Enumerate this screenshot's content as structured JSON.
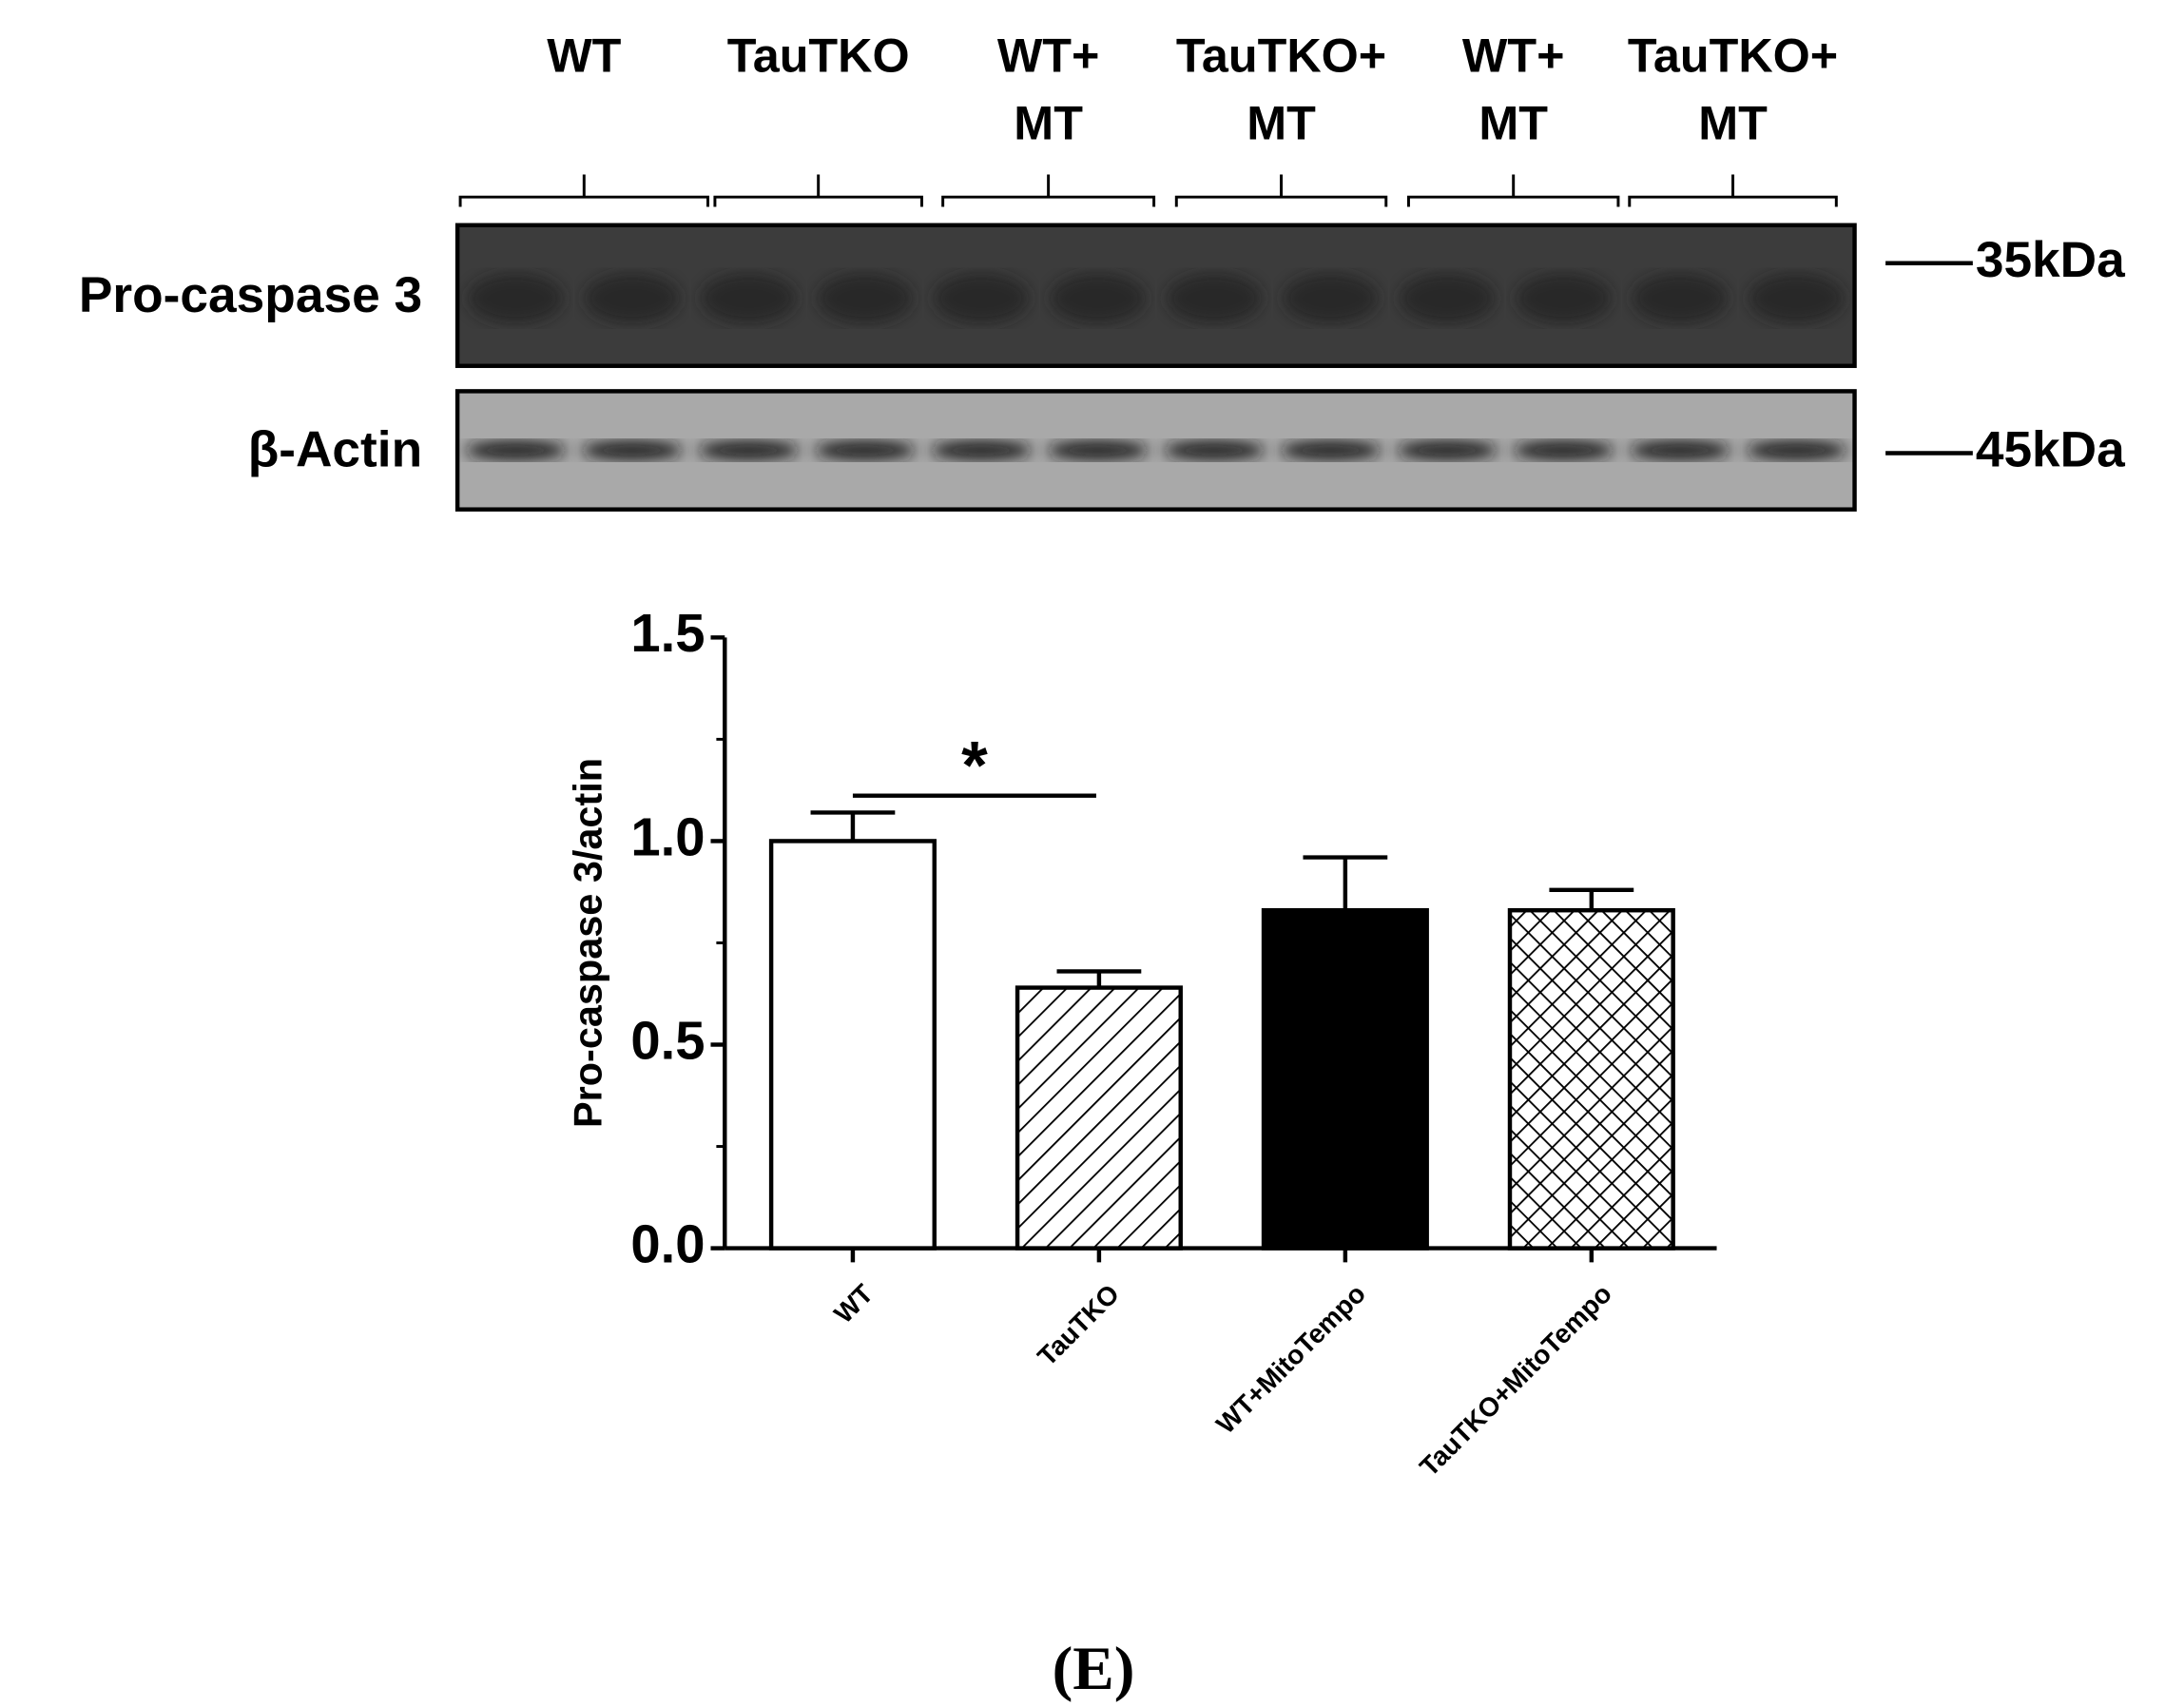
{
  "panel_label": "(E)",
  "blot": {
    "lanes": [
      [
        "WT"
      ],
      [
        "TauTKO"
      ],
      [
        "WT+",
        "MT"
      ],
      [
        "TauTKO+",
        "MT"
      ],
      [
        "WT+",
        "MT"
      ],
      [
        "TauTKO+",
        "MT"
      ]
    ],
    "rows": [
      {
        "label": "Pro-caspase 3",
        "marker": "35kDa"
      },
      {
        "label": "β-Actin",
        "marker": "45kDa"
      }
    ]
  },
  "chart_data": {
    "type": "bar",
    "y_label": "Pro-caspase 3/actin",
    "categories": [
      "WT",
      "TauTKO",
      "WT+MitoTempo",
      "TauTKO+MitoTempo"
    ],
    "values": [
      1.0,
      0.64,
      0.83,
      0.83
    ],
    "errors": [
      0.07,
      0.04,
      0.13,
      0.05
    ],
    "colors": [
      "#ffffff",
      "#ffffff",
      "#000000",
      "#ffffff"
    ],
    "hatches": [
      "none",
      "diagonal",
      "none",
      "cross"
    ],
    "ylim": [
      0,
      1.5
    ],
    "yticks": [
      {
        "value": 0,
        "label": "0.0"
      },
      {
        "value": 0.5,
        "label": "0.5"
      },
      {
        "value": 1,
        "label": "1.0"
      },
      {
        "value": 1.5,
        "label": "1.5"
      }
    ],
    "annotations": [
      {
        "text": "*",
        "from": "WT",
        "to": "TauTKO"
      }
    ]
  }
}
